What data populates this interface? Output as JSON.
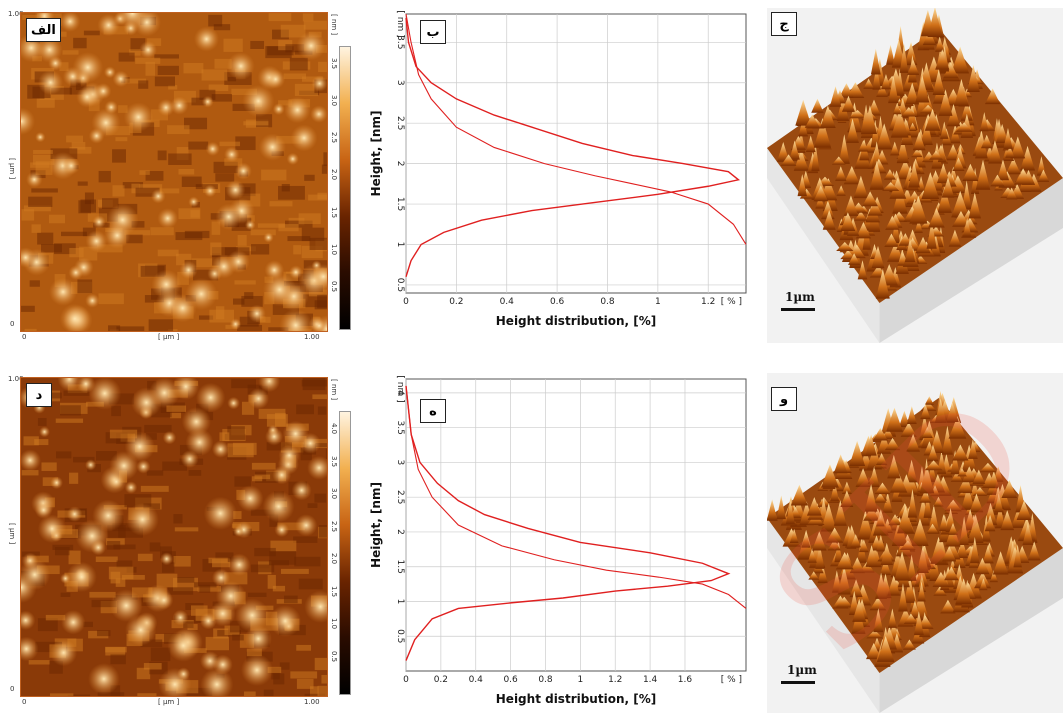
{
  "colors": {
    "curve": "#e02020",
    "afm_dark": "#3a1200",
    "afm_mid": "#c86414",
    "afm_light": "#ffd090",
    "panel_bg": "#f2f2f2"
  },
  "panels": {
    "a": {
      "label": "الف",
      "unit_label": "[ nm ]",
      "x_axis_label": "[ µm ]",
      "y_axis_label": "[ µm ]",
      "x_min": "0",
      "x_max": "1.00",
      "y_min": "0",
      "y_max": "1.00",
      "cbar_ticks": [
        "3.5",
        "3.0",
        "2.5",
        "2.0",
        "1.5",
        "1.0",
        "0.5"
      ]
    },
    "b": {
      "label": "ب"
    },
    "c": {
      "label": "ج",
      "scale": "1µm"
    },
    "d": {
      "label": "د",
      "unit_label": "[ nm ]",
      "x_axis_label": "[ µm ]",
      "y_axis_label": "[ µm ]",
      "x_min": "0",
      "x_max": "1.00",
      "y_min": "0",
      "y_max": "1.00",
      "cbar_ticks": [
        "4.0",
        "3.5",
        "3.0",
        "2.5",
        "2.0",
        "1.5",
        "1.0",
        "0.5"
      ]
    },
    "e": {
      "label": "ه"
    },
    "f": {
      "label": "و",
      "scale": "1µm"
    }
  },
  "watermark": "SID",
  "chart_data": [
    {
      "type": "line",
      "xlabel": "Height distribution, [%]",
      "ylabel": "Height, [nm]",
      "x_unit": "[ % ]",
      "y_unit": "[ nm ]",
      "xlim": [
        0,
        1.35
      ],
      "ylim": [
        0.4,
        3.85
      ],
      "x_ticks": [
        0,
        0.2,
        0.4,
        0.6,
        0.8,
        1.0,
        1.2
      ],
      "y_ticks": [
        0.5,
        1.0,
        1.5,
        2.0,
        2.5,
        3.0,
        3.5
      ],
      "series": [
        {
          "kind": "histogram",
          "points": [
            [
              0.0,
              0.6
            ],
            [
              0.02,
              0.8
            ],
            [
              0.06,
              1.0
            ],
            [
              0.15,
              1.15
            ],
            [
              0.3,
              1.3
            ],
            [
              0.5,
              1.42
            ],
            [
              0.75,
              1.52
            ],
            [
              1.0,
              1.62
            ],
            [
              1.2,
              1.72
            ],
            [
              1.32,
              1.8
            ],
            [
              1.28,
              1.9
            ],
            [
              1.1,
              2.0
            ],
            [
              0.9,
              2.1
            ],
            [
              0.7,
              2.25
            ],
            [
              0.5,
              2.45
            ],
            [
              0.35,
              2.6
            ],
            [
              0.2,
              2.8
            ],
            [
              0.1,
              3.0
            ],
            [
              0.04,
              3.2
            ],
            [
              0.01,
              3.5
            ],
            [
              0.0,
              3.8
            ]
          ]
        },
        {
          "kind": "cumulative",
          "points": [
            [
              1.35,
              1.0
            ],
            [
              1.3,
              1.25
            ],
            [
              1.2,
              1.5
            ],
            [
              1.05,
              1.65
            ],
            [
              0.9,
              1.75
            ],
            [
              0.75,
              1.85
            ],
            [
              0.55,
              2.0
            ],
            [
              0.35,
              2.2
            ],
            [
              0.2,
              2.45
            ],
            [
              0.1,
              2.8
            ],
            [
              0.05,
              3.1
            ],
            [
              0.02,
              3.5
            ],
            [
              0.0,
              3.85
            ]
          ]
        }
      ]
    },
    {
      "type": "line",
      "xlabel": "Height distribution, [%]",
      "ylabel": "Height, [nm]",
      "x_unit": "[ % ]",
      "y_unit": "[ nm ]",
      "xlim": [
        0,
        1.95
      ],
      "ylim": [
        0.0,
        4.2
      ],
      "x_ticks": [
        0,
        0.2,
        0.4,
        0.6,
        0.8,
        1.0,
        1.2,
        1.4,
        1.6
      ],
      "y_ticks": [
        0.5,
        1.0,
        1.5,
        2.0,
        2.5,
        3.0,
        3.5,
        4.0
      ],
      "series": [
        {
          "kind": "histogram",
          "points": [
            [
              0.0,
              0.15
            ],
            [
              0.05,
              0.45
            ],
            [
              0.15,
              0.75
            ],
            [
              0.3,
              0.9
            ],
            [
              0.6,
              0.98
            ],
            [
              0.9,
              1.05
            ],
            [
              1.2,
              1.15
            ],
            [
              1.5,
              1.22
            ],
            [
              1.75,
              1.3
            ],
            [
              1.85,
              1.4
            ],
            [
              1.7,
              1.55
            ],
            [
              1.4,
              1.7
            ],
            [
              1.0,
              1.85
            ],
            [
              0.7,
              2.05
            ],
            [
              0.45,
              2.25
            ],
            [
              0.3,
              2.45
            ],
            [
              0.18,
              2.7
            ],
            [
              0.08,
              3.0
            ],
            [
              0.03,
              3.4
            ],
            [
              0.0,
              4.1
            ]
          ]
        },
        {
          "kind": "cumulative",
          "points": [
            [
              1.95,
              0.9
            ],
            [
              1.85,
              1.1
            ],
            [
              1.7,
              1.25
            ],
            [
              1.45,
              1.35
            ],
            [
              1.15,
              1.45
            ],
            [
              0.85,
              1.6
            ],
            [
              0.55,
              1.8
            ],
            [
              0.3,
              2.1
            ],
            [
              0.15,
              2.5
            ],
            [
              0.07,
              2.9
            ],
            [
              0.03,
              3.4
            ],
            [
              0.0,
              4.1
            ]
          ]
        }
      ]
    }
  ]
}
